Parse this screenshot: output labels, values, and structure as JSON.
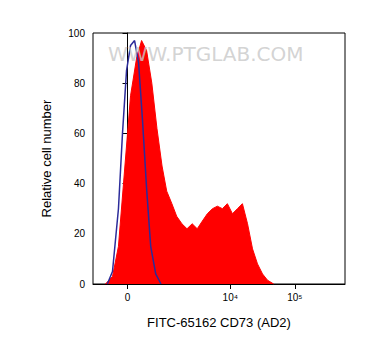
{
  "chart_data": {
    "type": "line",
    "x_label": "FITC-65162 CD73 (AD2)",
    "y_label": "Relative cell number",
    "annotations": [
      "WWW.PTGLAB.COM"
    ],
    "xlim": [
      -800,
      600000
    ],
    "xticks": [
      {
        "value": 0,
        "label": "0"
      },
      {
        "value": 10000,
        "label": "10⁴"
      },
      {
        "value": 100000,
        "label": "10⁵"
      }
    ],
    "ylim": [
      0,
      100
    ],
    "yticks": [
      0,
      20,
      40,
      60,
      80,
      100
    ],
    "grid": false,
    "series": [
      {
        "type": "area",
        "color": "#ff0000",
        "x": [
          -445,
          -287,
          -168,
          -55,
          55,
          168,
          267,
          375,
          500,
          640,
          800,
          970,
          1190,
          1430,
          1740,
          2100,
          2540,
          3050,
          3650,
          4390,
          5280,
          6300,
          7530,
          9000,
          10780,
          12900,
          15400,
          18500,
          22100,
          26400,
          31600,
          37800,
          47000
        ],
        "values": [
          0,
          3,
          15,
          45,
          75,
          90,
          97,
          93,
          80,
          62,
          47,
          37,
          32,
          27,
          24,
          22,
          24,
          22,
          25,
          28,
          30,
          31,
          30,
          32,
          28,
          30,
          32,
          24,
          14,
          8,
          4,
          1.5,
          0
        ]
      },
      {
        "type": "line",
        "color": "#2b2b9a",
        "x": [
          -400,
          -287,
          -168,
          -92,
          -18,
          55,
          130,
          207,
          287,
          375,
          472,
          605,
          765
        ],
        "values": [
          0,
          5,
          30,
          60,
          85,
          95,
          97,
          88,
          65,
          38,
          15,
          4,
          0
        ]
      }
    ]
  }
}
